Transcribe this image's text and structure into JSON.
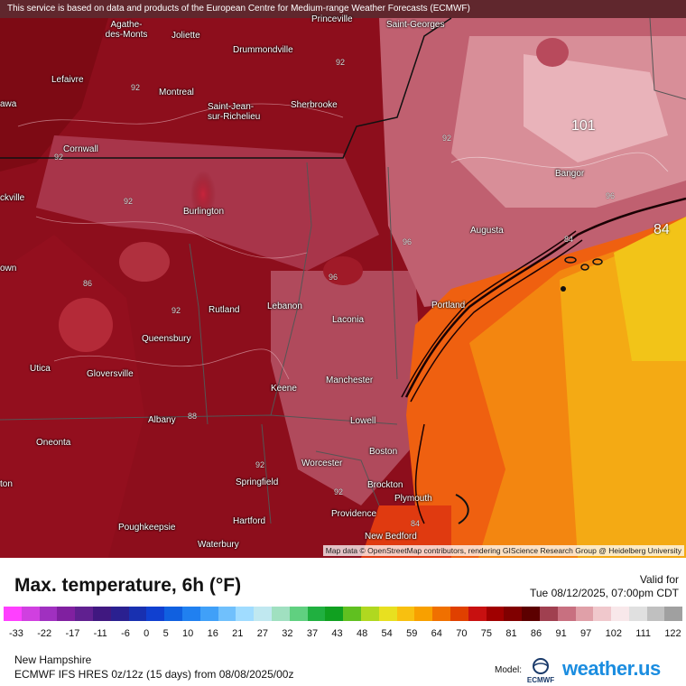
{
  "attribution_top": "This service is based on data and products of the European Centre for Medium-range Weather Forecasts (ECMWF)",
  "attribution_bottom": "Map data © OpenStreetMap contributors, rendering GIScience Research Group @ Heidelberg University",
  "cities": [
    {
      "id": "princeville",
      "name": "Princeville"
    },
    {
      "id": "saint-georges",
      "name": "Saint-Georges"
    },
    {
      "id": "agathe",
      "name": "Agathe-\ndes-Monts"
    },
    {
      "id": "joliette",
      "name": "Joliette"
    },
    {
      "id": "drummondville",
      "name": "Drummondville"
    },
    {
      "id": "lefaivre",
      "name": "Lefaivre"
    },
    {
      "id": "montreal",
      "name": "Montreal"
    },
    {
      "id": "awa",
      "name": "awa"
    },
    {
      "id": "saint-jean",
      "name": "Saint-Jean-\nsur-Richelieu"
    },
    {
      "id": "sherbrooke",
      "name": "Sherbrooke"
    },
    {
      "id": "cornwall",
      "name": "Cornwall"
    },
    {
      "id": "bangor",
      "name": "Bangor"
    },
    {
      "id": "ckville",
      "name": "ckville"
    },
    {
      "id": "burlington",
      "name": "Burlington"
    },
    {
      "id": "augusta",
      "name": "Augusta"
    },
    {
      "id": "own",
      "name": "own"
    },
    {
      "id": "portland",
      "name": "Portland"
    },
    {
      "id": "rutland",
      "name": "Rutland"
    },
    {
      "id": "lebanon",
      "name": "Lebanon"
    },
    {
      "id": "laconia",
      "name": "Laconia"
    },
    {
      "id": "queensbury",
      "name": "Queensbury"
    },
    {
      "id": "utica",
      "name": "Utica"
    },
    {
      "id": "gloversville",
      "name": "Gloversville"
    },
    {
      "id": "manchester",
      "name": "Manchester"
    },
    {
      "id": "keene",
      "name": "Keene"
    },
    {
      "id": "albany",
      "name": "Albany"
    },
    {
      "id": "lowell",
      "name": "Lowell"
    },
    {
      "id": "oneonta",
      "name": "Oneonta"
    },
    {
      "id": "boston",
      "name": "Boston"
    },
    {
      "id": "worcester",
      "name": "Worcester"
    },
    {
      "id": "springfield",
      "name": "Springfield"
    },
    {
      "id": "brockton",
      "name": "Brockton"
    },
    {
      "id": "ton",
      "name": "ton"
    },
    {
      "id": "plymouth",
      "name": "Plymouth"
    },
    {
      "id": "providence",
      "name": "Providence"
    },
    {
      "id": "poughkeepsie",
      "name": "Poughkeepsie"
    },
    {
      "id": "hartford",
      "name": "Hartford"
    },
    {
      "id": "new-bedford",
      "name": "New Bedford"
    },
    {
      "id": "waterbury",
      "name": "Waterbury"
    }
  ],
  "isolines": [
    "92",
    "92",
    "92",
    "92",
    "92",
    "96",
    "96",
    "92",
    "86",
    "96",
    "92",
    "88",
    "92",
    "84",
    "84"
  ],
  "big_labels": [
    "101",
    "84"
  ],
  "title": "Max. temperature, 6h (°F)",
  "valid_label": "Valid for",
  "valid_time": "Tue 08/12/2025, 07:00pm CDT",
  "colorbar_ticks": [
    "-33",
    "-22",
    "-17",
    "-11",
    "-6",
    "0",
    "5",
    "10",
    "16",
    "21",
    "27",
    "32",
    "37",
    "43",
    "48",
    "54",
    "59",
    "64",
    "70",
    "75",
    "81",
    "86",
    "91",
    "97",
    "102",
    "111",
    "122"
  ],
  "colorbar_colors": [
    "#ff40ff",
    "#d040e0",
    "#a030c0",
    "#8020a0",
    "#602090",
    "#401880",
    "#2a2090",
    "#1830b0",
    "#1040d0",
    "#1060e0",
    "#2080f0",
    "#40a0f8",
    "#70c0fc",
    "#a0dcff",
    "#c0e8f0",
    "#a0e0c0",
    "#60d080",
    "#20b040",
    "#10a020",
    "#60c020",
    "#b0d820",
    "#e8e020",
    "#f8c010",
    "#f8a000",
    "#f07000",
    "#e04000",
    "#c81010",
    "#a00000",
    "#800000",
    "#5c0000",
    "#a04050",
    "#c87080",
    "#e0a0a8",
    "#f0c8cc",
    "#f8e8ea",
    "#e0e0e0",
    "#c0c0c0",
    "#a0a0a0"
  ],
  "region": "New Hampshire",
  "model": "ECMWF IFS HRES 0z/12z (15 days) from 08/08/2025/00z",
  "model_label": "Model:",
  "model_logo_text": "ECMWF",
  "brand": "weather.us"
}
